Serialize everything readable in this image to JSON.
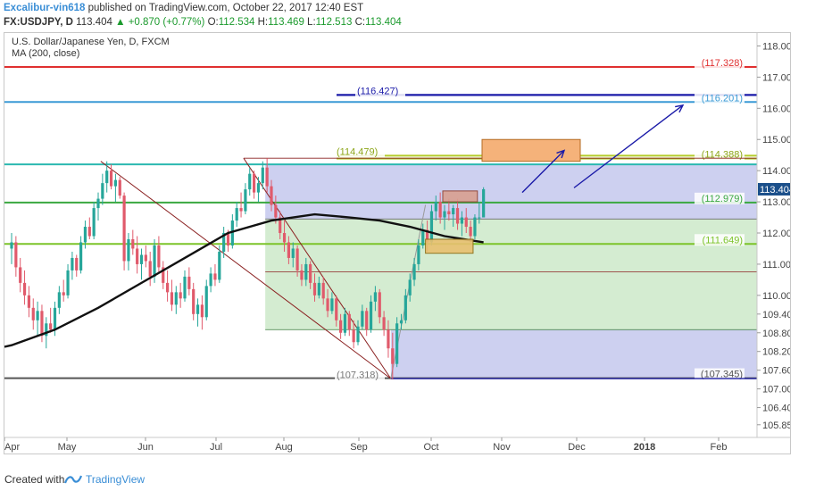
{
  "header": {
    "author": "Excalibur-vin618",
    "published_text": "published on TradingView.com, October 22, 2017 12:40 EST",
    "symbol": "FX:USDJPY, D",
    "last": "113.404",
    "change": "+0.870 (+0.77%)",
    "o_label": "O:",
    "o_value": "112.534",
    "h_label": "H:",
    "h_value": "113.469",
    "l_label": "L:",
    "l_value": "112.513",
    "c_label": "C:",
    "c_value": "113.404"
  },
  "legend": {
    "title": "U.S. Dollar/Japanese Yen, D, FXCM",
    "indicator": "MA (200, close)"
  },
  "footer": {
    "created_with": "Created with",
    "brand": "TradingView"
  },
  "colors": {
    "up": "#26a69a",
    "down": "#e05a6b",
    "ma": "#111111",
    "price_badge": "#1b4f8a",
    "brand": "#3a8ed6"
  },
  "icons": {
    "arrow_up": "arrow-up-icon",
    "logo": "tradingview-logo-icon"
  },
  "chart_data": {
    "type": "candlestick",
    "title": "U.S. Dollar/Japanese Yen, D, FXCM",
    "price_axis_ticks": [
      "118.000",
      "117.000",
      "116.000",
      "115.000",
      "114.000",
      "113.000",
      "112.000",
      "111.000",
      "110.000",
      "109.400",
      "108.800",
      "108.200",
      "107.600",
      "107.000",
      "106.400",
      "105.850"
    ],
    "time_axis_ticks": [
      "Apr",
      "May",
      "Jun",
      "Jul",
      "Aug",
      "Sep",
      "Oct",
      "Nov",
      "Dec",
      "2018",
      "Feb"
    ],
    "ylim": [
      105.5,
      118.3
    ],
    "last_price": "113.404",
    "horizontal_levels": [
      {
        "value": 117.328,
        "label": "(117.328)",
        "color": "#e03030"
      },
      {
        "value": 116.201,
        "label": "(116.201)",
        "color": "#3a9ad6"
      },
      {
        "value": 116.427,
        "label": "(116.427)",
        "color": "#1a1aa8"
      },
      {
        "value": 114.479,
        "label": "(114.479)",
        "color": "#b5cc2a"
      },
      {
        "value": 114.388,
        "label": "(114.388)",
        "color": "#b5cc2a"
      },
      {
        "value": 114.2,
        "label": "",
        "color": "#2bb8b0"
      },
      {
        "value": 112.979,
        "label": "(112.979)",
        "color": "#3aa840"
      },
      {
        "value": 111.649,
        "label": "(111.649)",
        "color": "#7cc42a"
      },
      {
        "value": 107.345,
        "label": "(107.345)",
        "color": "#555555"
      },
      {
        "value": 107.318,
        "label": "(107.318)",
        "color": "#888888"
      }
    ],
    "candles": [
      [
        0,
        111.5,
        112.0,
        111.0,
        111.7
      ],
      [
        1,
        111.7,
        111.9,
        110.6,
        110.9
      ],
      [
        2,
        110.9,
        111.2,
        110.1,
        110.4
      ],
      [
        3,
        110.4,
        110.8,
        109.7,
        110.0
      ],
      [
        4,
        110.0,
        110.3,
        109.3,
        109.6
      ],
      [
        5,
        109.6,
        109.9,
        108.9,
        109.2
      ],
      [
        6,
        109.2,
        109.8,
        108.7,
        109.5
      ],
      [
        7,
        109.5,
        109.7,
        108.5,
        108.7
      ],
      [
        8,
        108.7,
        109.3,
        108.3,
        109.1
      ],
      [
        9,
        109.1,
        109.6,
        108.8,
        108.9
      ],
      [
        10,
        108.9,
        109.8,
        108.7,
        109.6
      ],
      [
        11,
        109.6,
        110.3,
        109.4,
        110.1
      ],
      [
        12,
        110.1,
        110.5,
        109.8,
        110.0
      ],
      [
        13,
        110.0,
        111.0,
        109.9,
        110.8
      ],
      [
        14,
        110.8,
        111.4,
        110.5,
        111.2
      ],
      [
        15,
        111.2,
        111.3,
        110.6,
        110.8
      ],
      [
        16,
        110.8,
        111.9,
        110.7,
        111.7
      ],
      [
        17,
        111.7,
        112.4,
        111.5,
        112.2
      ],
      [
        18,
        112.2,
        112.5,
        111.8,
        111.9
      ],
      [
        19,
        111.9,
        113.0,
        111.8,
        112.8
      ],
      [
        20,
        112.8,
        113.3,
        112.4,
        113.1
      ],
      [
        21,
        113.1,
        113.9,
        112.9,
        113.6
      ],
      [
        22,
        113.6,
        114.3,
        113.3,
        114.0
      ],
      [
        23,
        114.0,
        114.2,
        113.4,
        113.5
      ],
      [
        24,
        113.5,
        113.9,
        113.0,
        113.7
      ],
      [
        25,
        113.7,
        113.8,
        113.1,
        113.2
      ],
      [
        26,
        113.2,
        113.3,
        110.8,
        111.1
      ],
      [
        27,
        111.1,
        112.0,
        110.8,
        111.8
      ],
      [
        28,
        111.8,
        112.1,
        111.3,
        111.5
      ],
      [
        29,
        111.5,
        111.9,
        110.7,
        111.0
      ],
      [
        30,
        111.0,
        111.5,
        110.5,
        111.3
      ],
      [
        31,
        111.3,
        111.6,
        110.9,
        111.1
      ],
      [
        32,
        111.1,
        111.4,
        110.3,
        110.6
      ],
      [
        33,
        110.6,
        111.8,
        110.4,
        111.6
      ],
      [
        34,
        111.6,
        111.9,
        110.7,
        110.9
      ],
      [
        35,
        110.9,
        111.1,
        110.2,
        110.4
      ],
      [
        36,
        110.4,
        110.8,
        109.8,
        110.1
      ],
      [
        37,
        110.1,
        110.5,
        109.5,
        109.7
      ],
      [
        38,
        109.7,
        110.3,
        109.4,
        110.1
      ],
      [
        39,
        110.1,
        110.4,
        109.6,
        109.9
      ],
      [
        40,
        109.9,
        110.8,
        109.8,
        110.6
      ],
      [
        41,
        110.6,
        110.9,
        110.0,
        110.2
      ],
      [
        42,
        110.2,
        110.4,
        109.2,
        109.4
      ],
      [
        43,
        109.4,
        109.9,
        109.0,
        109.7
      ],
      [
        44,
        109.7,
        110.0,
        108.9,
        109.3
      ],
      [
        45,
        109.3,
        110.5,
        109.2,
        110.3
      ],
      [
        46,
        110.3,
        110.9,
        110.1,
        110.7
      ],
      [
        47,
        110.7,
        111.0,
        110.3,
        110.5
      ],
      [
        48,
        110.5,
        111.6,
        110.4,
        111.4
      ],
      [
        49,
        111.4,
        112.2,
        111.2,
        112.0
      ],
      [
        50,
        112.0,
        112.1,
        111.4,
        111.6
      ],
      [
        51,
        111.6,
        112.6,
        111.5,
        112.4
      ],
      [
        52,
        112.4,
        113.0,
        112.2,
        112.8
      ],
      [
        53,
        112.8,
        113.3,
        112.5,
        112.7
      ],
      [
        54,
        112.7,
        113.6,
        112.6,
        113.4
      ],
      [
        55,
        113.4,
        114.1,
        113.2,
        113.9
      ],
      [
        56,
        113.9,
        114.0,
        113.1,
        113.3
      ],
      [
        57,
        113.3,
        113.8,
        113.0,
        113.6
      ],
      [
        58,
        113.6,
        114.3,
        113.4,
        114.1
      ],
      [
        59,
        114.1,
        114.4,
        113.3,
        113.5
      ],
      [
        60,
        113.5,
        113.7,
        112.7,
        112.9
      ],
      [
        61,
        112.9,
        113.2,
        112.3,
        112.5
      ],
      [
        62,
        112.5,
        112.7,
        111.8,
        112.0
      ],
      [
        63,
        112.0,
        112.4,
        111.4,
        111.7
      ],
      [
        64,
        111.7,
        111.9,
        111.0,
        111.2
      ],
      [
        65,
        111.2,
        111.7,
        110.9,
        111.5
      ],
      [
        66,
        111.5,
        111.6,
        110.6,
        110.8
      ],
      [
        67,
        110.8,
        111.0,
        110.3,
        110.5
      ],
      [
        68,
        110.5,
        111.2,
        110.3,
        111.0
      ],
      [
        69,
        111.0,
        111.1,
        110.2,
        110.4
      ],
      [
        70,
        110.4,
        110.7,
        109.8,
        110.0
      ],
      [
        71,
        110.0,
        110.6,
        109.9,
        110.4
      ],
      [
        72,
        110.4,
        110.6,
        109.7,
        109.9
      ],
      [
        73,
        109.9,
        110.2,
        109.3,
        109.5
      ],
      [
        74,
        109.5,
        110.1,
        109.4,
        109.9
      ],
      [
        75,
        109.9,
        110.0,
        109.0,
        109.2
      ],
      [
        76,
        109.2,
        109.4,
        108.6,
        108.8
      ],
      [
        77,
        108.8,
        109.6,
        108.7,
        109.4
      ],
      [
        78,
        109.4,
        109.5,
        108.7,
        108.9
      ],
      [
        79,
        108.9,
        109.2,
        108.3,
        108.5
      ],
      [
        80,
        108.5,
        109.2,
        108.4,
        109.0
      ],
      [
        81,
        109.0,
        109.7,
        108.9,
        109.5
      ],
      [
        82,
        109.5,
        109.6,
        108.7,
        108.9
      ],
      [
        83,
        108.9,
        110.0,
        108.8,
        109.8
      ],
      [
        84,
        109.8,
        110.3,
        109.5,
        110.1
      ],
      [
        85,
        110.1,
        110.2,
        109.1,
        109.3
      ],
      [
        86,
        109.3,
        109.5,
        108.7,
        108.9
      ],
      [
        87,
        108.9,
        109.2,
        108.0,
        108.3
      ],
      [
        88,
        108.3,
        108.8,
        107.3,
        107.8
      ],
      [
        89,
        107.8,
        109.3,
        107.7,
        109.1
      ],
      [
        90,
        109.1,
        109.4,
        108.9,
        109.2
      ],
      [
        91,
        109.2,
        110.2,
        109.1,
        110.0
      ],
      [
        92,
        110.0,
        110.7,
        109.8,
        110.5
      ],
      [
        93,
        110.5,
        111.2,
        110.3,
        111.0
      ],
      [
        94,
        111.0,
        111.8,
        110.8,
        111.6
      ],
      [
        95,
        111.6,
        112.3,
        111.5,
        112.1
      ],
      [
        96,
        112.1,
        112.4,
        111.4,
        111.7
      ],
      [
        97,
        111.7,
        112.9,
        111.6,
        112.7
      ],
      [
        98,
        112.7,
        113.2,
        112.4,
        113.0
      ],
      [
        99,
        113.0,
        113.3,
        112.3,
        112.5
      ],
      [
        100,
        112.5,
        112.9,
        112.1,
        112.7
      ],
      [
        101,
        112.7,
        113.1,
        112.4,
        112.6
      ],
      [
        102,
        112.6,
        112.9,
        112.2,
        112.8
      ],
      [
        103,
        112.8,
        113.1,
        112.1,
        112.3
      ],
      [
        104,
        112.3,
        112.7,
        111.9,
        112.5
      ],
      [
        105,
        112.5,
        112.8,
        112.0,
        112.2
      ],
      [
        106,
        112.2,
        112.4,
        111.7,
        111.9
      ],
      [
        107,
        111.9,
        112.6,
        111.8,
        112.5
      ],
      [
        108,
        112.5,
        113.0,
        112.3,
        112.5
      ],
      [
        109,
        112.5,
        113.469,
        112.513,
        113.404
      ]
    ],
    "ma_200": [
      [
        0,
        108.4
      ],
      [
        10,
        108.9
      ],
      [
        20,
        109.6
      ],
      [
        30,
        110.4
      ],
      [
        40,
        111.2
      ],
      [
        50,
        112.0
      ],
      [
        60,
        112.4
      ],
      [
        70,
        112.6
      ],
      [
        78,
        112.5
      ],
      [
        85,
        112.4
      ],
      [
        92,
        112.2
      ],
      [
        100,
        111.9
      ],
      [
        109,
        111.7
      ]
    ],
    "annotations": [
      {
        "type": "rectangle",
        "label": "target box",
        "color": "#f5b27a"
      },
      {
        "type": "rectangle",
        "label": "resistance box",
        "color": "#d9a090"
      },
      {
        "type": "rectangle",
        "label": "support box",
        "color": "#e8c070"
      },
      {
        "type": "arrow",
        "color": "#1a1aa8"
      },
      {
        "type": "arrow",
        "color": "#1a1aa8"
      }
    ]
  }
}
